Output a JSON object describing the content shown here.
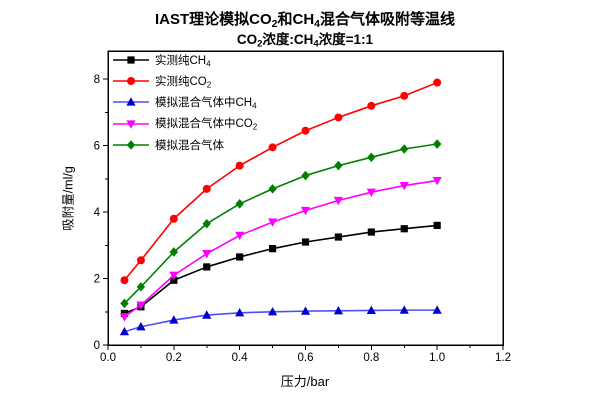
{
  "chart_data": {
    "type": "line",
    "title": "IAST理论模拟CO2和CH4混合气体吸附等温线",
    "title_segments": [
      {
        "t": "IAST理论模拟CO"
      },
      {
        "t": "2",
        "sub": true
      },
      {
        "t": "和CH"
      },
      {
        "t": "4",
        "sub": true
      },
      {
        "t": "混合气体吸附等温线"
      }
    ],
    "subtitle": "CO2浓度:CH4浓度=1:1",
    "subtitle_segments": [
      {
        "t": "CO"
      },
      {
        "t": "2",
        "sub": true
      },
      {
        "t": "浓度:CH"
      },
      {
        "t": "4",
        "sub": true
      },
      {
        "t": "浓度=1:1"
      }
    ],
    "xlabel": "压力/bar",
    "ylabel": "吸附量/ml/g",
    "xlim": [
      0.0,
      1.2
    ],
    "ylim": [
      0,
      8.85
    ],
    "x_major_ticks": [
      0.0,
      0.2,
      0.4,
      0.6,
      0.8,
      1.0,
      1.2
    ],
    "x_tick_labels": [
      "0.0",
      "0.2",
      "0.4",
      "0.6",
      "0.8",
      "1.0",
      "1.2"
    ],
    "x_minor_step": 0.1,
    "y_major_ticks": [
      0,
      2,
      4,
      6,
      8
    ],
    "y_tick_labels": [
      "0",
      "2",
      "4",
      "6",
      "8"
    ],
    "y_minor_step": 1,
    "grid": false,
    "legend_position": "top-left",
    "x": [
      0.05,
      0.1,
      0.2,
      0.3,
      0.4,
      0.5,
      0.6,
      0.7,
      0.8,
      0.9,
      1.0
    ],
    "series": [
      {
        "id": "measured-ch4",
        "name": "实测纯CH4",
        "name_segments": [
          {
            "t": "实测纯CH"
          },
          {
            "t": "4",
            "sub": true
          }
        ],
        "color": "#000000",
        "line_color": "#000000",
        "marker": "square",
        "values": [
          0.95,
          1.15,
          1.95,
          2.35,
          2.65,
          2.9,
          3.1,
          3.25,
          3.4,
          3.5,
          3.6
        ]
      },
      {
        "id": "measured-co2",
        "name": "实测纯CO2",
        "name_segments": [
          {
            "t": "实测纯CO"
          },
          {
            "t": "2",
            "sub": true
          }
        ],
        "color": "#ff0000",
        "line_color": "#ff0000",
        "marker": "circle",
        "values": [
          1.95,
          2.55,
          3.8,
          4.7,
          5.4,
          5.95,
          6.45,
          6.85,
          7.2,
          7.5,
          7.9
        ]
      },
      {
        "id": "sim-mix-ch4",
        "name": "模拟混合气体中CH4",
        "name_segments": [
          {
            "t": "模拟混合气体中CH"
          },
          {
            "t": "4",
            "sub": true
          }
        ],
        "color": "#0000cc",
        "line_color": "#4d4dff",
        "marker": "triangle-up",
        "values": [
          0.4,
          0.55,
          0.75,
          0.9,
          0.97,
          1.0,
          1.02,
          1.03,
          1.04,
          1.05,
          1.05
        ]
      },
      {
        "id": "sim-mix-co2",
        "name": "模拟混合气体中CO2",
        "name_segments": [
          {
            "t": "模拟混合气体中CO"
          },
          {
            "t": "2",
            "sub": true
          }
        ],
        "color": "#ff00ff",
        "line_color": "#ff00ff",
        "marker": "triangle-down",
        "values": [
          0.85,
          1.2,
          2.1,
          2.75,
          3.3,
          3.7,
          4.05,
          4.35,
          4.6,
          4.8,
          4.95
        ]
      },
      {
        "id": "sim-mix-total",
        "name": "模拟混合气体",
        "name_segments": [
          {
            "t": "模拟混合气体"
          }
        ],
        "color": "#008000",
        "line_color": "#008000",
        "marker": "diamond",
        "values": [
          1.25,
          1.75,
          2.8,
          3.65,
          4.25,
          4.7,
          5.1,
          5.4,
          5.65,
          5.9,
          6.05
        ]
      }
    ]
  }
}
